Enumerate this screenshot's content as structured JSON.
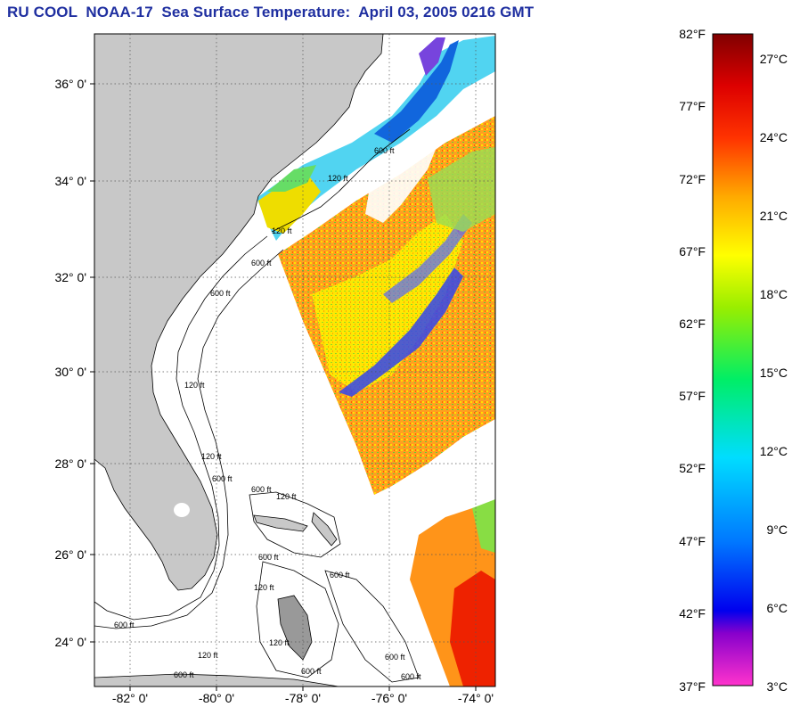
{
  "title": "RU COOL  NOAA-17  Sea Surface Temperature:  April 03, 2005 0216 GMT",
  "map": {
    "lat_ticks": [
      "36° 0'",
      "34° 0'",
      "32° 0'",
      "30° 0'",
      "28° 0'",
      "26° 0'",
      "24° 0'"
    ],
    "lon_ticks": [
      "-82° 0'",
      "-80° 0'",
      "-78° 0'",
      "-76° 0'",
      "-74° 0'"
    ],
    "land_color": "#c8c8c8",
    "contour_labels": [
      "120 ft",
      "600 ft",
      "120 ft",
      "600 ft",
      "600 ft",
      "120 ft",
      "120 ft",
      "600 ft",
      "600 ft",
      "120 ft",
      "600 ft",
      "600 ft",
      "120 ft",
      "600 ft",
      "120 ft",
      "120 ft",
      "600 ft",
      "600 ft",
      "600 ft",
      "600 ft"
    ]
  },
  "colorbar": {
    "fahrenheit_labels": [
      "82°F",
      "77°F",
      "72°F",
      "67°F",
      "62°F",
      "57°F",
      "52°F",
      "47°F",
      "42°F",
      "37°F"
    ],
    "celsius_labels": [
      "27°C",
      "24°C",
      "21°C",
      "18°C",
      "15°C",
      "12°C",
      "9°C",
      "6°C",
      "3°C"
    ],
    "celsius_values": [
      27,
      24,
      21,
      18,
      15,
      12,
      9,
      6,
      3
    ],
    "fahrenheit_values": [
      82,
      77,
      72,
      67,
      62,
      57,
      52,
      47,
      42,
      37
    ],
    "colors": [
      "#ff33cc",
      "#8800cc",
      "#0000ee",
      "#0077ff",
      "#00ddff",
      "#00ee66",
      "#99ee00",
      "#ffff00",
      "#ffaa00",
      "#ff3300",
      "#dd0000",
      "#800000"
    ]
  }
}
